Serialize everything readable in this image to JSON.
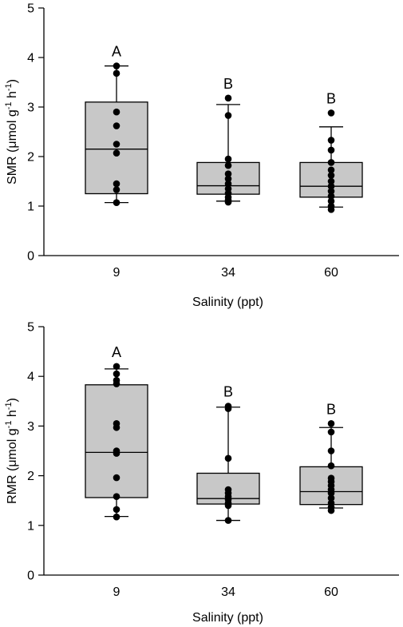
{
  "chart_data": [
    {
      "type": "box",
      "ylabel_base": "SMR (",
      "ylabel_unit": "μmol g",
      "ylabel_exp1": "-1",
      "ylabel_mid": " h",
      "ylabel_exp2": "-1",
      "ylabel_close": ")",
      "xlabel": "Salinity (ppt)",
      "ylim": [
        0,
        5
      ],
      "yticks": [
        "0",
        "1",
        "2",
        "3",
        "4",
        "5"
      ],
      "categories": [
        "9",
        "34",
        "60"
      ],
      "groups": [
        {
          "category": "9",
          "letter": "A",
          "whisker_low": 1.07,
          "q1": 1.25,
          "median": 2.15,
          "q3": 3.1,
          "whisker_high": 3.83,
          "points": [
            1.07,
            1.33,
            1.45,
            2.07,
            2.25,
            2.62,
            2.9,
            3.68,
            3.83
          ]
        },
        {
          "category": "34",
          "letter": "B",
          "whisker_low": 1.1,
          "q1": 1.24,
          "median": 1.41,
          "q3": 1.88,
          "whisker_high": 3.05,
          "points": [
            1.08,
            1.12,
            1.18,
            1.26,
            1.35,
            1.45,
            1.55,
            1.65,
            1.82,
            1.95,
            2.83,
            3.18
          ]
        },
        {
          "category": "60",
          "letter": "B",
          "whisker_low": 0.98,
          "q1": 1.18,
          "median": 1.4,
          "q3": 1.88,
          "whisker_high": 2.6,
          "points": [
            0.93,
            1.0,
            1.1,
            1.2,
            1.3,
            1.4,
            1.5,
            1.62,
            1.73,
            1.88,
            2.13,
            2.33,
            2.88
          ]
        }
      ]
    },
    {
      "type": "box",
      "ylabel_base": "RMR (",
      "ylabel_unit": "μmol g",
      "ylabel_exp1": "-1",
      "ylabel_mid": " h",
      "ylabel_exp2": "-1",
      "ylabel_close": ")",
      "xlabel": "Salinity (ppt)",
      "ylim": [
        0,
        5
      ],
      "yticks": [
        "0",
        "1",
        "2",
        "3",
        "4",
        "5"
      ],
      "categories": [
        "9",
        "34",
        "60"
      ],
      "groups": [
        {
          "category": "9",
          "letter": "A",
          "whisker_low": 1.18,
          "q1": 1.56,
          "median": 2.47,
          "q3": 3.83,
          "whisker_high": 4.15,
          "points": [
            1.17,
            1.32,
            1.58,
            1.96,
            2.45,
            2.5,
            2.97,
            3.05,
            3.85,
            3.92,
            4.05,
            4.2
          ]
        },
        {
          "category": "34",
          "letter": "B",
          "whisker_low": 1.1,
          "q1": 1.43,
          "median": 1.54,
          "q3": 2.05,
          "whisker_high": 3.38,
          "points": [
            1.1,
            1.4,
            1.45,
            1.52,
            1.58,
            1.65,
            1.72,
            2.35,
            3.35,
            3.4
          ]
        },
        {
          "category": "60",
          "letter": "B",
          "whisker_low": 1.35,
          "q1": 1.42,
          "median": 1.68,
          "q3": 2.18,
          "whisker_high": 2.97,
          "points": [
            1.3,
            1.37,
            1.45,
            1.55,
            1.65,
            1.72,
            1.8,
            1.88,
            1.95,
            2.2,
            2.5,
            2.88,
            3.05
          ]
        }
      ]
    }
  ]
}
